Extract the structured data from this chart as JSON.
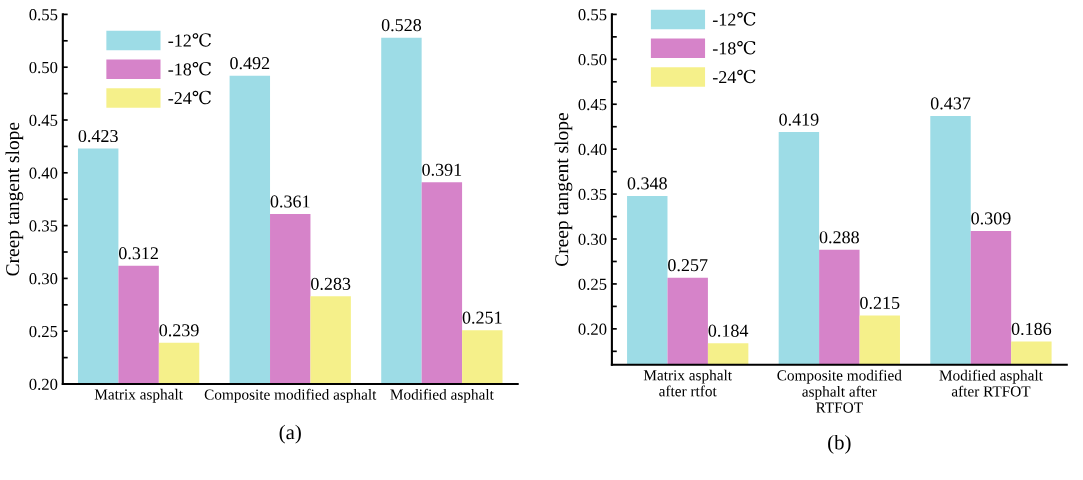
{
  "chart_data": [
    {
      "type": "bar",
      "ylabel": "Creep tangent slope",
      "categories": [
        "Matrix asphalt",
        "Composite modified asphalt",
        "Modified asphalt"
      ],
      "series": [
        {
          "name": "-12℃",
          "color": "#9ddce6",
          "values": [
            0.423,
            0.492,
            0.528
          ]
        },
        {
          "name": "-18℃",
          "color": "#d683c9",
          "values": [
            0.312,
            0.361,
            0.391
          ]
        },
        {
          "name": "-24℃",
          "color": "#f5f08a",
          "values": [
            0.239,
            0.283,
            0.251
          ]
        }
      ],
      "ylim": [
        0.2,
        0.55
      ],
      "yticks": [
        {
          "value": 0.2,
          "label": "0.20"
        },
        {
          "value": 0.225,
          "label": null
        },
        0.25,
        {
          "value": 0.275,
          "label": null
        },
        {
          "value": 0.3,
          "label": "0.30"
        },
        {
          "value": 0.325,
          "label": null
        },
        0.35,
        {
          "value": 0.375,
          "label": null
        },
        {
          "value": 0.4,
          "label": "0.40"
        },
        {
          "value": 0.425,
          "label": null
        },
        0.45,
        {
          "value": 0.475,
          "label": null
        },
        {
          "value": 0.5,
          "label": "0.50"
        },
        {
          "value": 0.525,
          "label": null
        },
        0.55
      ],
      "data_labels": true,
      "legend": "top left",
      "grid": false,
      "annotations": [
        "(a)"
      ]
    },
    {
      "type": "bar",
      "ylabel": "Creep tangent slope",
      "categories": [
        "Matrix asphalt\nafter rtfot",
        "Composite modified\nasphalt after\nRTFOT",
        "Modified asphalt\nafter RTFOT"
      ],
      "series": [
        {
          "name": "-12℃",
          "color": "#9ddce6",
          "values": [
            0.348,
            0.419,
            0.437
          ]
        },
        {
          "name": "-18℃",
          "color": "#d683c9",
          "values": [
            0.257,
            0.288,
            0.309
          ]
        },
        {
          "name": "-24℃",
          "color": "#f5f08a",
          "values": [
            0.184,
            0.215,
            0.186
          ]
        }
      ],
      "ylim": [
        0.16,
        0.55
      ],
      "yticks": [
        {
          "value": 0.175,
          "label": null
        },
        {
          "value": 0.2,
          "label": "0.20"
        },
        {
          "value": 0.225,
          "label": null
        },
        0.25,
        {
          "value": 0.275,
          "label": null
        },
        {
          "value": 0.3,
          "label": "0.30"
        },
        {
          "value": 0.325,
          "label": null
        },
        0.35,
        {
          "value": 0.375,
          "label": null
        },
        {
          "value": 0.4,
          "label": "0.40"
        },
        {
          "value": 0.425,
          "label": null
        },
        0.45,
        {
          "value": 0.475,
          "label": null
        },
        {
          "value": 0.5,
          "label": "0.50"
        },
        {
          "value": 0.525,
          "label": null
        },
        0.55
      ],
      "data_labels": true,
      "legend": "top left",
      "grid": false,
      "annotations": [
        "(b)"
      ]
    }
  ]
}
